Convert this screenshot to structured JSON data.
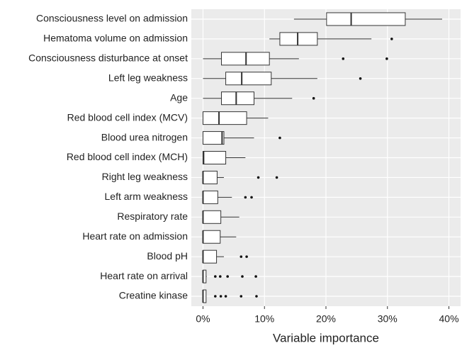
{
  "chart_data": {
    "type": "boxplot",
    "orientation": "horizontal",
    "x_label": "Variable importance",
    "categories": [
      "Consciousness level on admission",
      "Hematoma volume on admission",
      "Consciousness disturbance at onset",
      "Left leg weakness",
      "Age",
      "Red blood cell index (MCV)",
      "Blood urea nitrogen",
      "Red blood cell index (MCH)",
      "Right leg weakness",
      "Left arm weakness",
      "Respiratory rate",
      "Heart rate on admission",
      "Blood pH",
      "Heart rate on arrival",
      "Creatine kinase"
    ],
    "boxes": [
      {
        "min": 14.8,
        "q1": 20.1,
        "median": 24.1,
        "q3": 32.9,
        "max": 38.9,
        "outliers": []
      },
      {
        "min": 10.8,
        "q1": 12.5,
        "median": 15.4,
        "q3": 18.6,
        "max": 27.4,
        "outliers": [
          30.7
        ]
      },
      {
        "min": 0,
        "q1": 3.0,
        "median": 7.0,
        "q3": 10.8,
        "max": 15.6,
        "outliers": [
          22.8,
          29.9
        ]
      },
      {
        "min": 0,
        "q1": 3.7,
        "median": 6.3,
        "q3": 11.1,
        "max": 18.6,
        "outliers": [
          25.6
        ]
      },
      {
        "min": 0,
        "q1": 3.0,
        "median": 5.4,
        "q3": 8.3,
        "max": 14.5,
        "outliers": [
          18.0
        ]
      },
      {
        "min": 0,
        "q1": 0,
        "median": 2.6,
        "q3": 7.1,
        "max": 10.6,
        "outliers": []
      },
      {
        "min": 0,
        "q1": 0,
        "median": 3.1,
        "q3": 3.4,
        "max": 8.3,
        "outliers": [
          12.5
        ]
      },
      {
        "min": 0,
        "q1": 0,
        "median": 0.1,
        "q3": 3.7,
        "max": 6.9,
        "outliers": []
      },
      {
        "min": 0,
        "q1": 0,
        "median": 0,
        "q3": 2.3,
        "max": 3.4,
        "outliers": [
          9.0,
          12.0
        ]
      },
      {
        "min": 0,
        "q1": 0,
        "median": 0,
        "q3": 2.4,
        "max": 4.7,
        "outliers": [
          6.9,
          7.9
        ]
      },
      {
        "min": 0,
        "q1": 0,
        "median": 0,
        "q3": 2.9,
        "max": 5.9,
        "outliers": []
      },
      {
        "min": 0,
        "q1": 0,
        "median": 0,
        "q3": 2.8,
        "max": 5.4,
        "outliers": []
      },
      {
        "min": 0,
        "q1": 0,
        "median": 0,
        "q3": 2.2,
        "max": 3.4,
        "outliers": [
          6.2,
          7.1
        ]
      },
      {
        "min": 0,
        "q1": 0,
        "median": 0,
        "q3": 0.5,
        "max": 0.6,
        "outliers": [
          2.0,
          2.8,
          4.0,
          6.4,
          8.6
        ]
      },
      {
        "min": 0,
        "q1": 0,
        "median": 0,
        "q3": 0.5,
        "max": 0.5,
        "outliers": [
          2.0,
          2.9,
          3.7,
          6.2,
          8.7
        ]
      }
    ],
    "xlim": [
      -1.9,
      41.9
    ],
    "xticks": [
      {
        "value": 0,
        "label": "0%"
      },
      {
        "value": 10,
        "label": "10%"
      },
      {
        "value": 20,
        "label": "20%"
      },
      {
        "value": 30,
        "label": "30%"
      },
      {
        "value": 40,
        "label": "40%"
      }
    ],
    "grid": true,
    "panel_color": "#ebebeb",
    "box_color": "#ffffff",
    "line_color": "#333333"
  }
}
